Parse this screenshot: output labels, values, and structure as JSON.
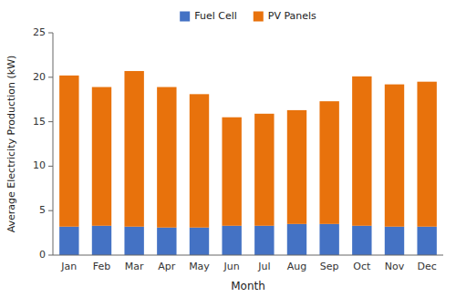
{
  "chart_data": {
    "type": "bar",
    "stacked": true,
    "xlabel": "Month",
    "ylabel": "Average Electricity Production (kW)",
    "categories": [
      "Jan",
      "Feb",
      "Mar",
      "Apr",
      "May",
      "Jun",
      "Jul",
      "Aug",
      "Sep",
      "Oct",
      "Nov",
      "Dec"
    ],
    "series": [
      {
        "name": "Fuel Cell",
        "color": "#4472C4",
        "values": [
          3.2,
          3.3,
          3.2,
          3.1,
          3.1,
          3.3,
          3.3,
          3.5,
          3.5,
          3.3,
          3.2,
          3.2
        ]
      },
      {
        "name": "PV Panels",
        "color": "#E8720C",
        "values": [
          17.0,
          15.6,
          17.5,
          15.8,
          15.0,
          12.2,
          12.6,
          12.8,
          13.8,
          16.8,
          16.0,
          16.3
        ]
      }
    ],
    "ylim": [
      0,
      25
    ],
    "yticks": [
      0,
      5,
      10,
      15,
      20,
      25
    ],
    "grid": false,
    "legend": "top"
  }
}
